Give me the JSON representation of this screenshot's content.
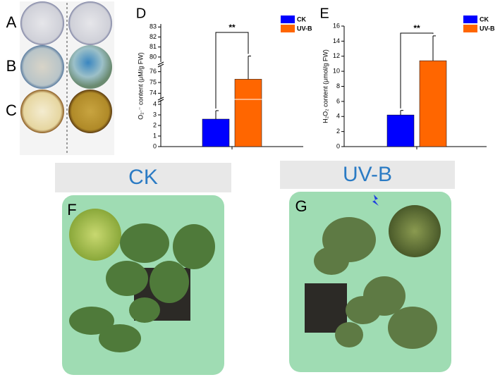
{
  "panels": {
    "a": "A",
    "b": "B",
    "c": "C",
    "f": "F",
    "g": "G"
  },
  "captions": [
    "CK",
    "UV-B"
  ],
  "chart_data": [
    {
      "type": "bar",
      "panel": "D",
      "ylabel": "O₂·⁻ content (μM/g FW)",
      "categories": [
        null,
        null
      ],
      "series": [
        {
          "name": "CK",
          "color": "#0000ff",
          "values": [
            2.6,
            null
          ],
          "errors": [
            0.8,
            null
          ]
        },
        {
          "name": "UV-B",
          "color": "#ff6600",
          "values": [
            null,
            75.3
          ],
          "errors": [
            null,
            4.8
          ]
        }
      ],
      "ysegments": [
        {
          "ylim": [
            0,
            4.4
          ],
          "yticks": [
            0,
            1,
            2,
            3,
            4
          ]
        },
        {
          "ylim": [
            73.5,
            76.5
          ],
          "yticks": [
            74,
            75,
            76
          ]
        },
        {
          "ylim": [
            79.5,
            83.3
          ],
          "yticks": [
            80,
            81,
            82,
            83
          ]
        }
      ],
      "annotation": "**",
      "legend": "upper right"
    },
    {
      "type": "bar",
      "panel": "E",
      "ylabel": "H₂O₂ content (μmol/g FW)",
      "categories": [
        null,
        null
      ],
      "series": [
        {
          "name": "CK",
          "color": "#0000ff",
          "values": [
            4.2,
            null
          ],
          "errors": [
            0.6,
            null
          ]
        },
        {
          "name": "UV-B",
          "color": "#ff6600",
          "values": [
            null,
            11.4
          ],
          "errors": [
            null,
            3.3
          ]
        }
      ],
      "ylim": [
        0,
        16
      ],
      "yticks": [
        0,
        2,
        4,
        6,
        8,
        10,
        12,
        14,
        16
      ],
      "annotation": "**",
      "legend": "upper right"
    }
  ]
}
